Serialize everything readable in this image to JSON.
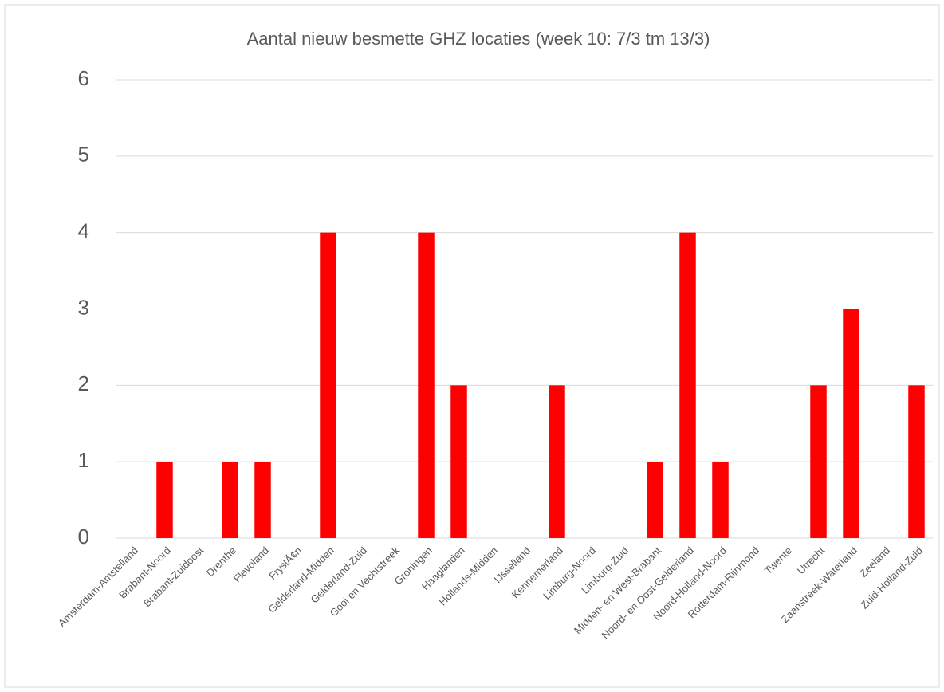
{
  "chart_data": {
    "type": "bar",
    "title": "Aantal nieuw besmette GHZ locaties (week 10: 7/3 tm 13/3)",
    "categories": [
      "Amsterdam-Amstelland",
      "Brabant-Noord",
      "Brabant-Zuidoost",
      "Drenthe",
      "Flevoland",
      "FryslÃ¢n",
      "Gelderland-Midden",
      "Gelderland-Zuid",
      "Gooi en Vechtstreek",
      "Groningen",
      "Haaglanden",
      "Hollands-Midden",
      "IJsselland",
      "Kennemerland",
      "Limburg-Noord",
      "Limburg-Zuid",
      "Midden- en West-Brabant",
      "Noord- en Oost-Gelderland",
      "Noord-Holland-Noord",
      "Rotterdam-Rijnmond",
      "Twente",
      "Utrecht",
      "Zaanstreek-Waterland",
      "Zeeland",
      "Zuid-Holland-Zuid"
    ],
    "values": [
      0,
      1,
      0,
      1,
      1,
      0,
      4,
      0,
      0,
      4,
      2,
      0,
      0,
      2,
      0,
      0,
      1,
      4,
      1,
      0,
      0,
      2,
      3,
      0,
      2
    ],
    "color": "#ff0000",
    "ylim": [
      0,
      6
    ],
    "yticks": [
      0,
      1,
      2,
      3,
      4,
      5,
      6
    ],
    "grid": true
  }
}
